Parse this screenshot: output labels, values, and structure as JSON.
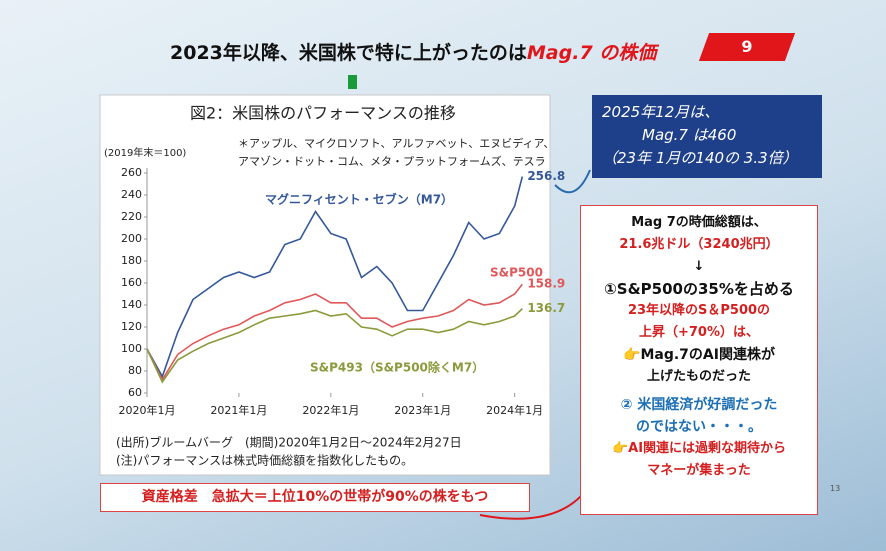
{
  "chart_data": {
    "type": "line",
    "title": "図2：米国株のパフォーマンスの推移",
    "ylabel": "(2019年末＝100)",
    "notes": [
      "＊アップル、マイクロソフト、アルファベット、エヌビディア、",
      "アマゾン・ドット・コム、メタ・プラットフォームズ、テスラ"
    ],
    "sources": [
      "(出所)ブルームバーグ　(期間)2020年1月2日～2024年2月27日",
      "(注)パフォーマンスは株式時価総額を指数化したもの。"
    ],
    "x": [
      "2020-01",
      "2020-03",
      "2020-05",
      "2020-07",
      "2020-09",
      "2020-11",
      "2021-01",
      "2021-03",
      "2021-05",
      "2021-07",
      "2021-09",
      "2021-11",
      "2022-01",
      "2022-03",
      "2022-05",
      "2022-07",
      "2022-09",
      "2022-11",
      "2023-01",
      "2023-03",
      "2023-05",
      "2023-07",
      "2023-09",
      "2023-11",
      "2024-01",
      "2024-02"
    ],
    "series": [
      {
        "name": "マグニフィセント・セブン（M7）",
        "color": "#34589a",
        "values": [
          100,
          75,
          115,
          145,
          155,
          165,
          170,
          165,
          170,
          195,
          200,
          225,
          205,
          200,
          165,
          175,
          160,
          135,
          135,
          160,
          185,
          215,
          200,
          205,
          230,
          256.8
        ]
      },
      {
        "name": "S&P500",
        "color": "#e0585a",
        "values": [
          100,
          72,
          95,
          105,
          112,
          118,
          122,
          130,
          135,
          142,
          145,
          150,
          142,
          142,
          128,
          128,
          120,
          125,
          128,
          130,
          135,
          145,
          140,
          142,
          150,
          158.9
        ]
      },
      {
        "name": "S&P493（S&P500除くM7）",
        "color": "#8c9a3c",
        "values": [
          100,
          70,
          90,
          98,
          105,
          110,
          115,
          122,
          128,
          130,
          132,
          135,
          130,
          132,
          120,
          118,
          112,
          118,
          118,
          115,
          118,
          125,
          122,
          125,
          130,
          136.7
        ]
      }
    ],
    "xlim": [
      "2020-01",
      "2024-03"
    ],
    "xticks": [
      {
        "value": "2020-01",
        "label": "2020年1月"
      },
      {
        "value": "2021-01",
        "label": "2021年1月"
      },
      {
        "value": "2022-01",
        "label": "2022年1月"
      },
      {
        "value": "2023-01",
        "label": "2023年1月"
      },
      {
        "value": "2024-01",
        "label": "2024年1月"
      }
    ],
    "ylim": [
      60,
      260
    ],
    "yticks": [
      60,
      80,
      100,
      120,
      140,
      160,
      180,
      200,
      220,
      240,
      260
    ],
    "grid": false
  },
  "slide": {
    "title": "2023年以降、米国株で特に上がったのは",
    "title_highlight": "Mag.7 の株価",
    "page": "9",
    "callout": [
      "2025年12月は、",
      "Mag.7 は460",
      "（23年 1月の140の 3.3倍）"
    ],
    "box": [
      "Mag 7の時価総額は、",
      "21.6兆ドル（3240兆円）",
      "↓",
      "①S&P500の35%を占める",
      "23年以降のS＆P500の",
      "上昇（+70%）は、",
      "👉Mag.7のAI関連株が",
      "上げたものだった",
      "② 米国経済が好調だった",
      "のではない・・・。",
      "👉AI関連には過剰な期待から",
      "マネーが集まった"
    ],
    "bottom": "資産格差　急拡大＝上位10%の世帯が90%の株をもつ",
    "slide_number": "13"
  }
}
